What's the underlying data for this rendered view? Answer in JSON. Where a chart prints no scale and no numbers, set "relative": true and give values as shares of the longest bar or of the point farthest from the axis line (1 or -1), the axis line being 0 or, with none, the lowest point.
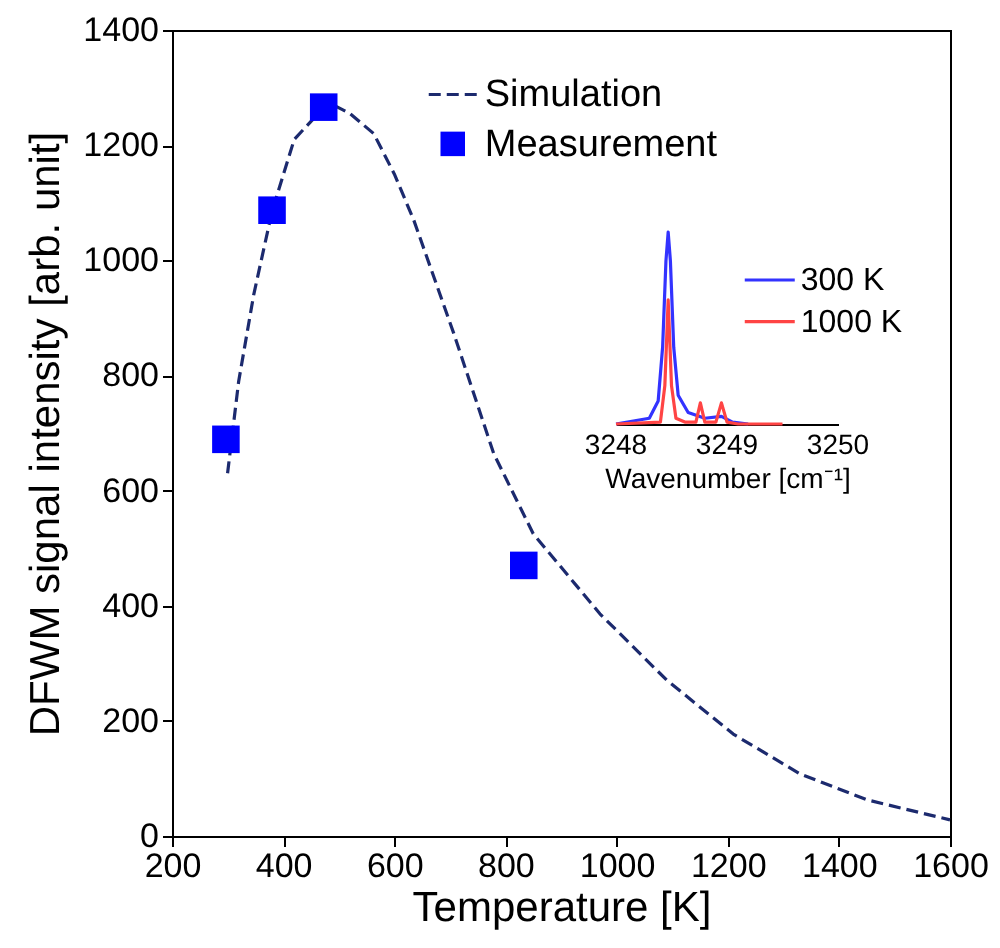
{
  "chart_data": [
    {
      "type": "line",
      "xlabel": "Temperature [K]",
      "ylabel": "DFWM signal intensity [arb. unit]",
      "xlim": [
        200,
        1600
      ],
      "ylim": [
        0,
        1400
      ],
      "xticks": [
        200,
        400,
        600,
        800,
        1000,
        1200,
        1400,
        1600
      ],
      "yticks": [
        0,
        200,
        400,
        600,
        800,
        1000,
        1200,
        1400
      ],
      "grid": false,
      "legend": "top",
      "series": [
        {
          "name": "Simulation",
          "type": "line",
          "line_style": "dashed",
          "color": "#1c2a6e",
          "x": [
            300,
            320,
            347,
            380,
            420,
            473,
            490,
            520,
            563,
            600,
            635,
            707,
            779,
            850,
            970,
            1090,
            1210,
            1330,
            1450,
            1600
          ],
          "values": [
            630,
            790,
            940,
            1085,
            1210,
            1265,
            1270,
            1255,
            1220,
            1150,
            1070,
            873,
            664,
            525,
            386,
            271,
            177,
            108,
            63,
            28
          ]
        },
        {
          "name": "Measurement",
          "type": "scatter",
          "marker": "square",
          "color": "#0000ff",
          "x": [
            297,
            380,
            473,
            833
          ],
          "values": [
            689,
            1087,
            1266,
            470
          ]
        }
      ]
    },
    {
      "type": "line",
      "relative": true,
      "xlabel": "Wavenumber [cm⁻¹]",
      "xlim": [
        3248,
        3250
      ],
      "xticks": [
        3248,
        3249,
        3250
      ],
      "legend": "top right",
      "series": [
        {
          "name": "300 K",
          "color": "#3333ff",
          "x": [
            3248,
            3248.3,
            3248.38,
            3248.42,
            3248.45,
            3248.47,
            3248.49,
            3248.52,
            3248.56,
            3248.65,
            3248.8,
            3248.95,
            3249.05,
            3249.19
          ],
          "values": [
            0,
            0.03,
            0.12,
            0.4,
            0.85,
            1,
            0.85,
            0.4,
            0.15,
            0.06,
            0.03,
            0.04,
            0.01,
            0
          ]
        },
        {
          "name": "1000 K",
          "color": "#ff4444",
          "x": [
            3248,
            3248.4,
            3248.44,
            3248.47,
            3248.5,
            3248.54,
            3248.62,
            3248.72,
            3248.76,
            3248.8,
            3248.9,
            3248.95,
            3249.0,
            3249.1,
            3249.5
          ],
          "values": [
            0,
            0.01,
            0.2,
            0.646,
            0.2,
            0.03,
            0.01,
            0.01,
            0.11,
            0.01,
            0.01,
            0.11,
            0.01,
            0,
            0
          ]
        }
      ]
    }
  ]
}
